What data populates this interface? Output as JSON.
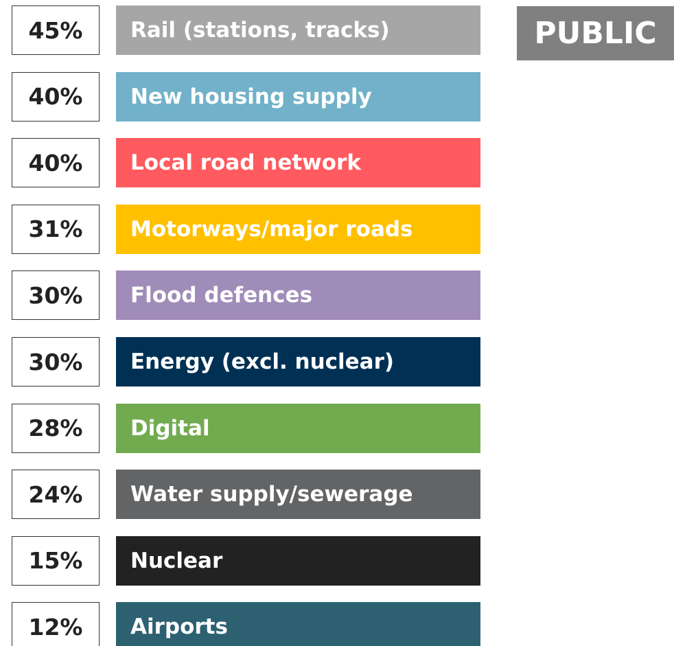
{
  "tag": "PUBLIC",
  "items": [
    {
      "value": "45%",
      "label": "Rail (stations, tracks)",
      "color": "#a6a6a6"
    },
    {
      "value": "40%",
      "label": "New housing supply",
      "color": "#71b1c9"
    },
    {
      "value": "40%",
      "label": "Local road network",
      "color": "#ff5a5f"
    },
    {
      "value": "31%",
      "label": "Motorways/major roads",
      "color": "#ffc000"
    },
    {
      "value": "30%",
      "label": "Flood defences",
      "color": "#a08cb8"
    },
    {
      "value": "30%",
      "label": "Energy (excl. nuclear)",
      "color": "#003155"
    },
    {
      "value": "28%",
      "label": "Digital",
      "color": "#72ab4f"
    },
    {
      "value": "24%",
      "label": "Water supply/sewerage",
      "color": "#636466"
    },
    {
      "value": "15%",
      "label": "Nuclear",
      "color": "#222222"
    },
    {
      "value": "12%",
      "label": "Airports",
      "color": "#2d6172"
    }
  ]
}
